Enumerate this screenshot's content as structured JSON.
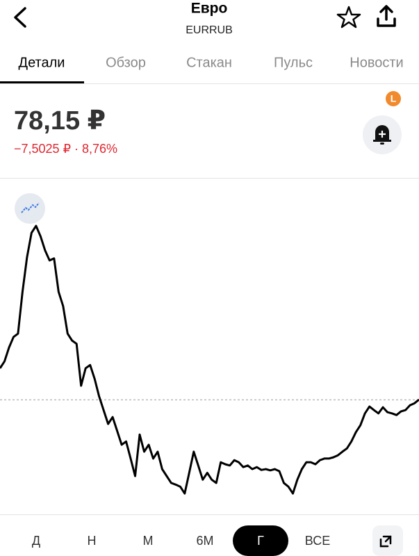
{
  "header": {
    "title": "Евро",
    "subtitle": "EURRUB"
  },
  "tabs": [
    "Детали",
    "Обзор",
    "Стакан",
    "Пульс",
    "Новости"
  ],
  "quote": {
    "price": "78,15 ₽",
    "change": "−7,5025 ₽ · 8,76%",
    "badge": "L"
  },
  "chart_data": {
    "type": "line",
    "color": "#000000",
    "reference": 78.15,
    "ylim": [
      50,
      132
    ],
    "values": [
      85.9,
      87.6,
      91.0,
      93.6,
      94.4,
      104.7,
      113.2,
      119.2,
      120.9,
      118.3,
      114.9,
      112.4,
      112.9,
      104.7,
      101.2,
      94.4,
      92.7,
      91.9,
      81.6,
      85.9,
      86.7,
      83.3,
      79.0,
      75.6,
      72.2,
      73.9,
      70.5,
      67.1,
      67.9,
      63.7,
      59.4,
      69.6,
      65.4,
      67.1,
      63.7,
      65.4,
      61.1,
      59.4,
      57.7,
      57.3,
      56.8,
      55.1,
      60.2,
      65.4,
      62.0,
      58.5,
      60.2,
      58.5,
      57.7,
      62.8,
      62.3,
      62.0,
      63.3,
      62.8,
      61.6,
      62.0,
      61.1,
      61.6,
      60.9,
      61.1,
      60.8,
      61.1,
      60.6,
      57.7,
      56.8,
      55.1,
      58.5,
      61.1,
      62.8,
      62.8,
      62.3,
      63.3,
      63.7,
      63.7,
      64.0,
      64.5,
      65.4,
      66.2,
      67.9,
      70.2,
      71.9,
      74.8,
      76.5,
      75.6,
      74.8,
      76.3,
      75.1,
      74.8,
      74.4,
      75.3,
      75.6,
      76.8,
      77.3,
      78.2
    ]
  },
  "periods": [
    "Д",
    "Н",
    "М",
    "6М",
    "Г",
    "ВСЕ"
  ],
  "active_period": 4
}
